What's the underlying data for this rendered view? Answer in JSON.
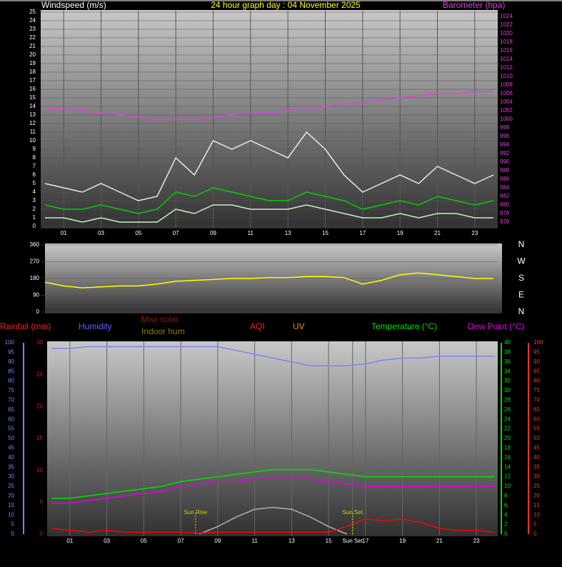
{
  "chart_data": [
    {
      "type": "line",
      "title": "24 hour graph day : 04 November 2025",
      "y_label": "Windspeed (m/s)",
      "y2_label": "Barometer (hpa)",
      "xlim": [
        0,
        24
      ],
      "xticks": [
        {
          "value": 1,
          "label": "01"
        },
        {
          "value": 3,
          "label": "03"
        },
        {
          "value": 5,
          "label": "05"
        },
        {
          "value": 7,
          "label": "07"
        },
        {
          "value": 9,
          "label": "09"
        },
        11,
        13,
        15,
        17,
        19,
        21,
        23
      ],
      "ylim": [
        0,
        25
      ],
      "yticks": [
        0,
        1,
        2,
        3,
        4,
        5,
        6,
        7,
        8,
        9,
        10,
        11,
        12,
        13,
        14,
        15,
        16,
        17,
        18,
        19,
        20,
        21,
        22,
        23,
        24,
        25
      ],
      "y2lim": [
        975,
        1025
      ],
      "y2ticks": [
        976,
        978,
        980,
        982,
        984,
        986,
        988,
        990,
        992,
        994,
        996,
        998,
        1000,
        1002,
        1004,
        1006,
        1008,
        1010,
        1012,
        1014,
        1016,
        1018,
        1020,
        1022,
        1024
      ],
      "grid": true,
      "x": [
        0,
        1,
        2,
        3,
        4,
        5,
        6,
        7,
        8,
        9,
        10,
        11,
        12,
        13,
        14,
        15,
        16,
        17,
        18,
        19,
        20,
        21,
        22,
        23,
        24
      ],
      "series": [
        {
          "color": "#e8e8e8",
          "values": [
            5,
            4.5,
            4,
            5,
            4,
            3,
            3.5,
            8,
            6,
            10,
            9,
            10,
            9,
            8,
            11,
            9,
            6,
            4,
            5,
            6,
            5,
            7,
            6,
            5,
            6
          ]
        },
        {
          "color": "#c8f0c8",
          "values": [
            1,
            1,
            0.5,
            1,
            0.5,
            0.5,
            0.5,
            2,
            1.5,
            2.5,
            2.5,
            2,
            2,
            2,
            2.5,
            2,
            1.5,
            1,
            1,
            1.5,
            1,
            1.5,
            1.5,
            1,
            1
          ]
        },
        {
          "color": "#00d000",
          "values": [
            2.5,
            2,
            2,
            2.5,
            2,
            1.5,
            2,
            4,
            3.5,
            4.5,
            4,
            3.5,
            3,
            3,
            4,
            3.5,
            3,
            2,
            2.5,
            3,
            2.5,
            3.5,
            3,
            2.5,
            3
          ]
        },
        {
          "color": "#e040e0",
          "axis": "y2",
          "values": [
            1002.5,
            1002.5,
            1002,
            1001.5,
            1001,
            1000.5,
            1000,
            1000,
            1000,
            1000.5,
            1001,
            1001.5,
            1001.5,
            1002,
            1002.5,
            1003,
            1003.5,
            1004,
            1004.5,
            1005,
            1005.5,
            1006,
            1006,
            1006.5,
            1006.5
          ]
        }
      ]
    },
    {
      "type": "line",
      "xlim": [
        0,
        24
      ],
      "ylim": [
        0,
        360
      ],
      "yticks": [
        0,
        90,
        180,
        270,
        360
      ],
      "y2lim": [
        0,
        360
      ],
      "y2ticks": [
        {
          "value": 360,
          "label": "N"
        },
        {
          "value": 270,
          "label": "W"
        },
        {
          "value": 180,
          "label": "S"
        },
        {
          "value": 90,
          "label": "E"
        },
        {
          "value": 0,
          "label": "N"
        }
      ],
      "grid": true,
      "x": [
        0,
        1,
        2,
        3,
        4,
        5,
        6,
        7,
        8,
        9,
        10,
        11,
        12,
        13,
        14,
        15,
        16,
        17,
        18,
        19,
        20,
        21,
        22,
        23,
        24
      ],
      "series": [
        {
          "color": "#ffff00",
          "values": [
            160,
            140,
            130,
            135,
            140,
            140,
            150,
            165,
            170,
            175,
            180,
            180,
            185,
            185,
            190,
            190,
            185,
            150,
            170,
            200,
            210,
            200,
            190,
            180,
            180
          ]
        }
      ]
    },
    {
      "type": "line",
      "labels": [
        "Rainfall (mm)",
        "Humidity",
        "Max solar",
        "Indoor hum",
        "AQI",
        "UV",
        "Temperature (°C)",
        "Dew Point (°C)"
      ],
      "xlim": [
        0,
        24
      ],
      "xticks": [
        {
          "value": 1,
          "label": "01"
        },
        {
          "value": 3,
          "label": "03"
        },
        {
          "value": 5,
          "label": "05"
        },
        {
          "value": 7,
          "label": "07"
        },
        {
          "value": 9,
          "label": "09"
        },
        11,
        13,
        15,
        {
          "value": 16.3,
          "label": "Sun Set"
        },
        17,
        19,
        21,
        23
      ],
      "ylim": [
        0,
        100
      ],
      "yticks": [
        0,
        5,
        10,
        15,
        20,
        25,
        30,
        35,
        40,
        45,
        50,
        55,
        60,
        65,
        70,
        75,
        80,
        85,
        90,
        95,
        100
      ],
      "y2lim": [
        0,
        40
      ],
      "y2ticks": [
        0,
        2,
        4,
        6,
        8,
        10,
        12,
        14,
        16,
        18,
        20,
        22,
        24,
        26,
        28,
        30,
        32,
        34,
        36,
        38,
        40
      ],
      "y3lim": [
        0,
        100
      ],
      "y3ticks": [
        0,
        5,
        10,
        15,
        20,
        25,
        30,
        35,
        40,
        45,
        50,
        55,
        60,
        65,
        70,
        75,
        80,
        85,
        90,
        95,
        100
      ],
      "y4lim": [
        0,
        30
      ],
      "y4ticks": [
        0,
        5,
        10,
        15,
        20,
        25,
        30
      ],
      "annotations": [
        {
          "text": "Sun Rise",
          "x": 7.8
        },
        {
          "text": "Sun Set",
          "x": 16.3
        }
      ],
      "x": [
        0,
        1,
        2,
        3,
        4,
        5,
        6,
        7,
        8,
        9,
        10,
        11,
        12,
        13,
        14,
        15,
        16,
        17,
        18,
        19,
        20,
        21,
        22,
        23,
        24
      ],
      "series": [
        {
          "color": "#8080ff",
          "values": [
            97,
            97,
            98,
            98,
            98,
            98,
            98,
            98,
            98,
            98,
            96,
            94,
            92,
            90,
            88,
            88,
            88,
            89,
            91,
            92,
            92,
            93,
            93,
            93,
            93
          ]
        },
        {
          "color": "#00e000",
          "axis": "y2",
          "values": [
            7.5,
            7.5,
            8,
            8.5,
            9,
            9.5,
            10,
            11,
            11.5,
            12,
            12.5,
            13,
            13.5,
            13.5,
            13.5,
            13,
            12.5,
            12,
            12,
            12,
            12,
            12,
            12,
            12,
            12
          ]
        },
        {
          "color": "#e000e0",
          "axis": "y2",
          "values": [
            6.5,
            6.5,
            7,
            7.5,
            8,
            8.5,
            9,
            10,
            10.5,
            11,
            11,
            11.5,
            11.5,
            11.5,
            11.5,
            11,
            10.5,
            10,
            10,
            10,
            10,
            10,
            10,
            10,
            10
          ]
        },
        {
          "color": "#b0b0b0",
          "axis": "y3",
          "values": [
            null,
            null,
            null,
            null,
            null,
            null,
            null,
            null,
            0,
            4,
            9,
            13,
            14,
            13,
            9,
            4,
            0,
            null,
            null,
            null,
            null,
            null,
            null,
            null,
            null
          ]
        },
        {
          "color": "#ff0000",
          "axis": "y3",
          "values": [
            3,
            2,
            1,
            2,
            1,
            1,
            1,
            1,
            0.5,
            1,
            1,
            1,
            1,
            1,
            1,
            1,
            4,
            8,
            7,
            8,
            6,
            3,
            2,
            2,
            1
          ]
        }
      ]
    }
  ]
}
